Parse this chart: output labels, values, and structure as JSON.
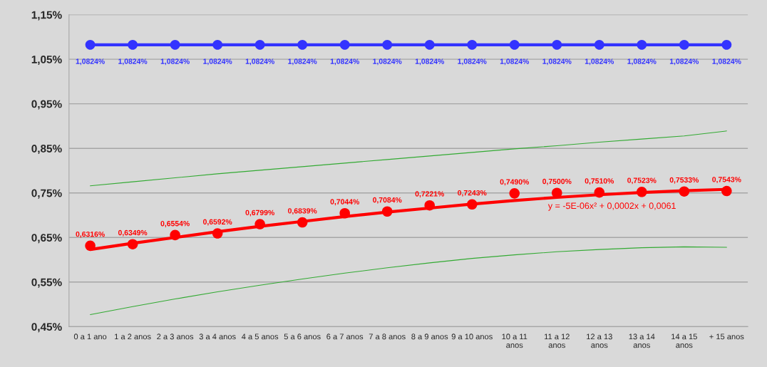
{
  "chart_data": {
    "type": "line",
    "categories": [
      "0 a 1 ano",
      "1 a 2 anos",
      "2 a 3 anos",
      "3 a 4 anos",
      "4 a 5 anos",
      "5 a 6 anos",
      "6 a 7 anos",
      "7 a 8 anos",
      "8 a 9 anos",
      "9 a 10 anos",
      "10 a 11\nanos",
      "11 a 12\nanos",
      "12 a 13\nanos",
      "13 a 14\nanos",
      "14 a 15\nanos",
      "+ 15 anos"
    ],
    "series": [
      {
        "color": "#3333ff",
        "marker": "circle",
        "values": [
          1.0824,
          1.0824,
          1.0824,
          1.0824,
          1.0824,
          1.0824,
          1.0824,
          1.0824,
          1.0824,
          1.0824,
          1.0824,
          1.0824,
          1.0824,
          1.0824,
          1.0824,
          1.0824
        ],
        "value_labels": [
          "1,0824%",
          "1,0824%",
          "1,0824%",
          "1,0824%",
          "1,0824%",
          "1,0824%",
          "1,0824%",
          "1,0824%",
          "1,0824%",
          "1,0824%",
          "1,0824%",
          "1,0824%",
          "1,0824%",
          "1,0824%",
          "1,0824%",
          "1,0824%"
        ]
      },
      {
        "color": "#33aa33",
        "marker": "none",
        "values": [
          0.766,
          0.775,
          0.784,
          0.793,
          0.801,
          0.809,
          0.817,
          0.825,
          0.833,
          0.841,
          0.849,
          0.856,
          0.864,
          0.871,
          0.878,
          0.889
        ]
      },
      {
        "color": "#33aa33",
        "marker": "none",
        "values": [
          0.477,
          0.495,
          0.512,
          0.528,
          0.543,
          0.557,
          0.57,
          0.582,
          0.593,
          0.603,
          0.611,
          0.618,
          0.623,
          0.627,
          0.629,
          0.628
        ]
      },
      {
        "color": "#ff0000",
        "marker": "none",
        "values": [
          0.623,
          0.637,
          0.65,
          0.663,
          0.675,
          0.686,
          0.697,
          0.707,
          0.716,
          0.725,
          0.733,
          0.74,
          0.746,
          0.751,
          0.755,
          0.758
        ]
      },
      {
        "type": "scatter",
        "color": "#ff0000",
        "marker": "circle",
        "values": [
          0.6316,
          0.6349,
          0.6554,
          0.6592,
          0.6799,
          0.6839,
          0.7044,
          0.7084,
          0.7221,
          0.7243,
          0.749,
          0.75,
          0.751,
          0.7523,
          0.7533,
          0.7543
        ],
        "value_labels": [
          "0,6316%",
          "0,6349%",
          "0,6554%",
          "0,6592%",
          "0,6799%",
          "0,6839%",
          "0,7044%",
          "0,7084%",
          "0,7221%",
          "0,7243%",
          "0,7490%",
          "0,7500%",
          "0,7510%",
          "0,7523%",
          "0,7533%",
          "0,7543%"
        ]
      }
    ],
    "ylim": [
      0.45,
      1.15
    ],
    "yticks": [
      {
        "value": 0.45,
        "label": "0,45%"
      },
      {
        "value": 0.55,
        "label": "0,55%"
      },
      {
        "value": 0.65,
        "label": "0,65%"
      },
      {
        "value": 0.75,
        "label": "0,75%"
      },
      {
        "value": 0.85,
        "label": "0,85%"
      },
      {
        "value": 0.95,
        "label": "0,95%"
      },
      {
        "value": 1.05,
        "label": "1,05%"
      },
      {
        "value": 1.15,
        "label": "1,15%"
      }
    ],
    "grid": "y",
    "legend": false,
    "annotations": [
      "y = -5E-06x² + 0,0002x + 0,0061"
    ]
  }
}
